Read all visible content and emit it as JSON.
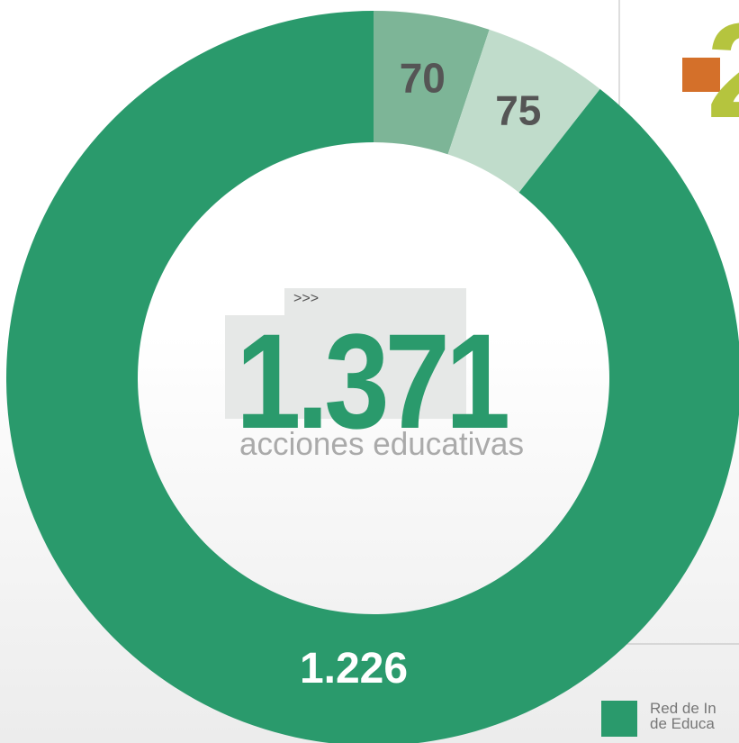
{
  "chart_data": {
    "type": "donut",
    "values": [
      70,
      75,
      1226
    ],
    "value_labels": [
      "70",
      "75",
      "1.226"
    ],
    "colors": [
      "#7db597",
      "#c0dccb",
      "#2a9a6c"
    ],
    "center_total": "1.371",
    "center_caption": "acciones educativas",
    "center_marker": ">>>",
    "legend": {
      "label_lines": [
        "Red de In",
        "de Educa"
      ],
      "color": "#2a9a6c"
    },
    "corner_text": "2"
  }
}
